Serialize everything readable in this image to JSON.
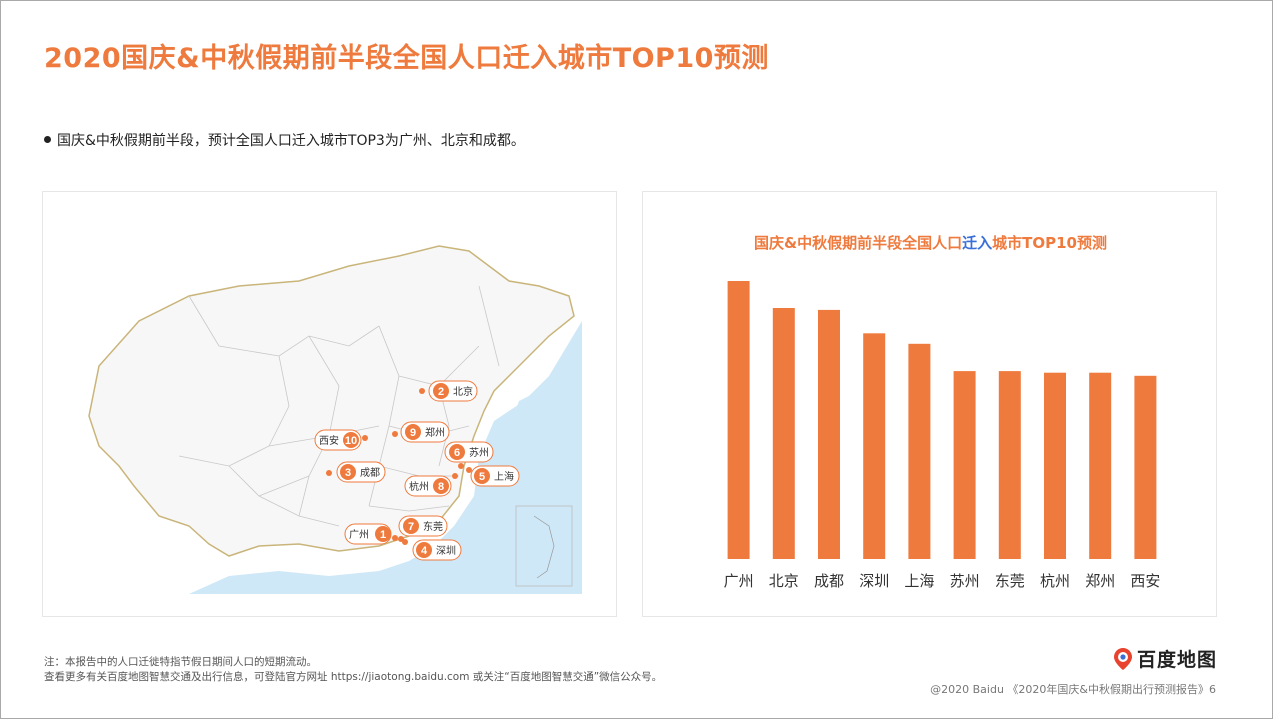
{
  "header": {
    "title": "2020国庆&中秋假期前半段全国人口迁入城市TOP10预测",
    "bullet": "国庆&中秋假期前半段，预计全国人口迁入城市TOP3为广州、北京和成都。"
  },
  "map": {
    "cities": [
      {
        "rank": "1",
        "name": "广州"
      },
      {
        "rank": "2",
        "name": "北京"
      },
      {
        "rank": "3",
        "name": "成都"
      },
      {
        "rank": "4",
        "name": "深圳"
      },
      {
        "rank": "5",
        "name": "上海"
      },
      {
        "rank": "6",
        "name": "苏州"
      },
      {
        "rank": "7",
        "name": "东莞"
      },
      {
        "rank": "8",
        "name": "杭州"
      },
      {
        "rank": "9",
        "name": "郑州"
      },
      {
        "rank": "10",
        "name": "西安"
      }
    ]
  },
  "chart_title": {
    "part1": "国庆&中秋假期前半段全国人口",
    "part2": "迁入",
    "part3": "城市TOP10预测"
  },
  "chart_data": {
    "type": "bar",
    "title": "国庆&中秋假期前半段全国人口迁入城市TOP10预测",
    "categories": [
      "广州",
      "北京",
      "成都",
      "深圳",
      "上海",
      "苏州",
      "东莞",
      "杭州",
      "郑州",
      "西安"
    ],
    "values": [
      100,
      90.3,
      89.6,
      81.2,
      77.4,
      67.6,
      67.6,
      67.0,
      67.0,
      65.9
    ],
    "ylim": [
      0,
      100
    ],
    "bar_color": "#ef7a3d",
    "grid": false,
    "value_axis_visible": false
  },
  "footer": {
    "note1": "注：本报告中的人口迁徙特指节假日期间人口的短期流动。",
    "note2": "查看更多有关百度地图智慧交通及出行信息，可登陆官方网址 https://jiaotong.baidu.com 或关注“百度地图智慧交通”微信公众号。",
    "logo_text": "百度地图",
    "source": "@2020 Baidu 《2020年国庆&中秋假期出行预测报告》6"
  },
  "colors": {
    "accent": "#ef7a3d",
    "highlight": "#3a6fd8",
    "sea": "#cfe8f7"
  }
}
